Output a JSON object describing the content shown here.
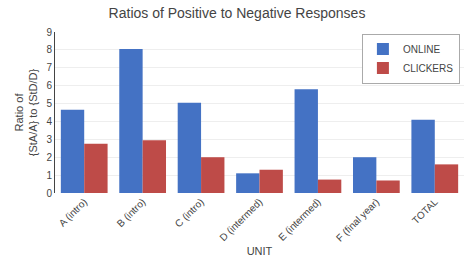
{
  "chart_data": {
    "type": "bar",
    "title": "Ratios of Positive to Negative Responses",
    "xlabel": "UNIT",
    "ylabel": "Ratio of\n{StA/A} to {StD/D}",
    "categories": [
      "A (intro)",
      "B (intro)",
      "C (intro)",
      "D (intermed)",
      "E (intermed)",
      "F (final year)",
      "TOTAL"
    ],
    "series": [
      {
        "name": "ONLINE",
        "color": "#4472C4",
        "values": [
          4.65,
          8.05,
          5.05,
          1.1,
          5.8,
          2.0,
          4.1
        ]
      },
      {
        "name": "CLICKERS",
        "color": "#BE4B48",
        "values": [
          2.75,
          2.95,
          2.0,
          1.3,
          0.75,
          0.7,
          1.6
        ]
      }
    ],
    "ylim": [
      0,
      9
    ],
    "yticks": [
      0,
      1,
      2,
      3,
      4,
      5,
      6,
      7,
      8,
      9
    ],
    "grid": true,
    "legend": "upper right"
  }
}
